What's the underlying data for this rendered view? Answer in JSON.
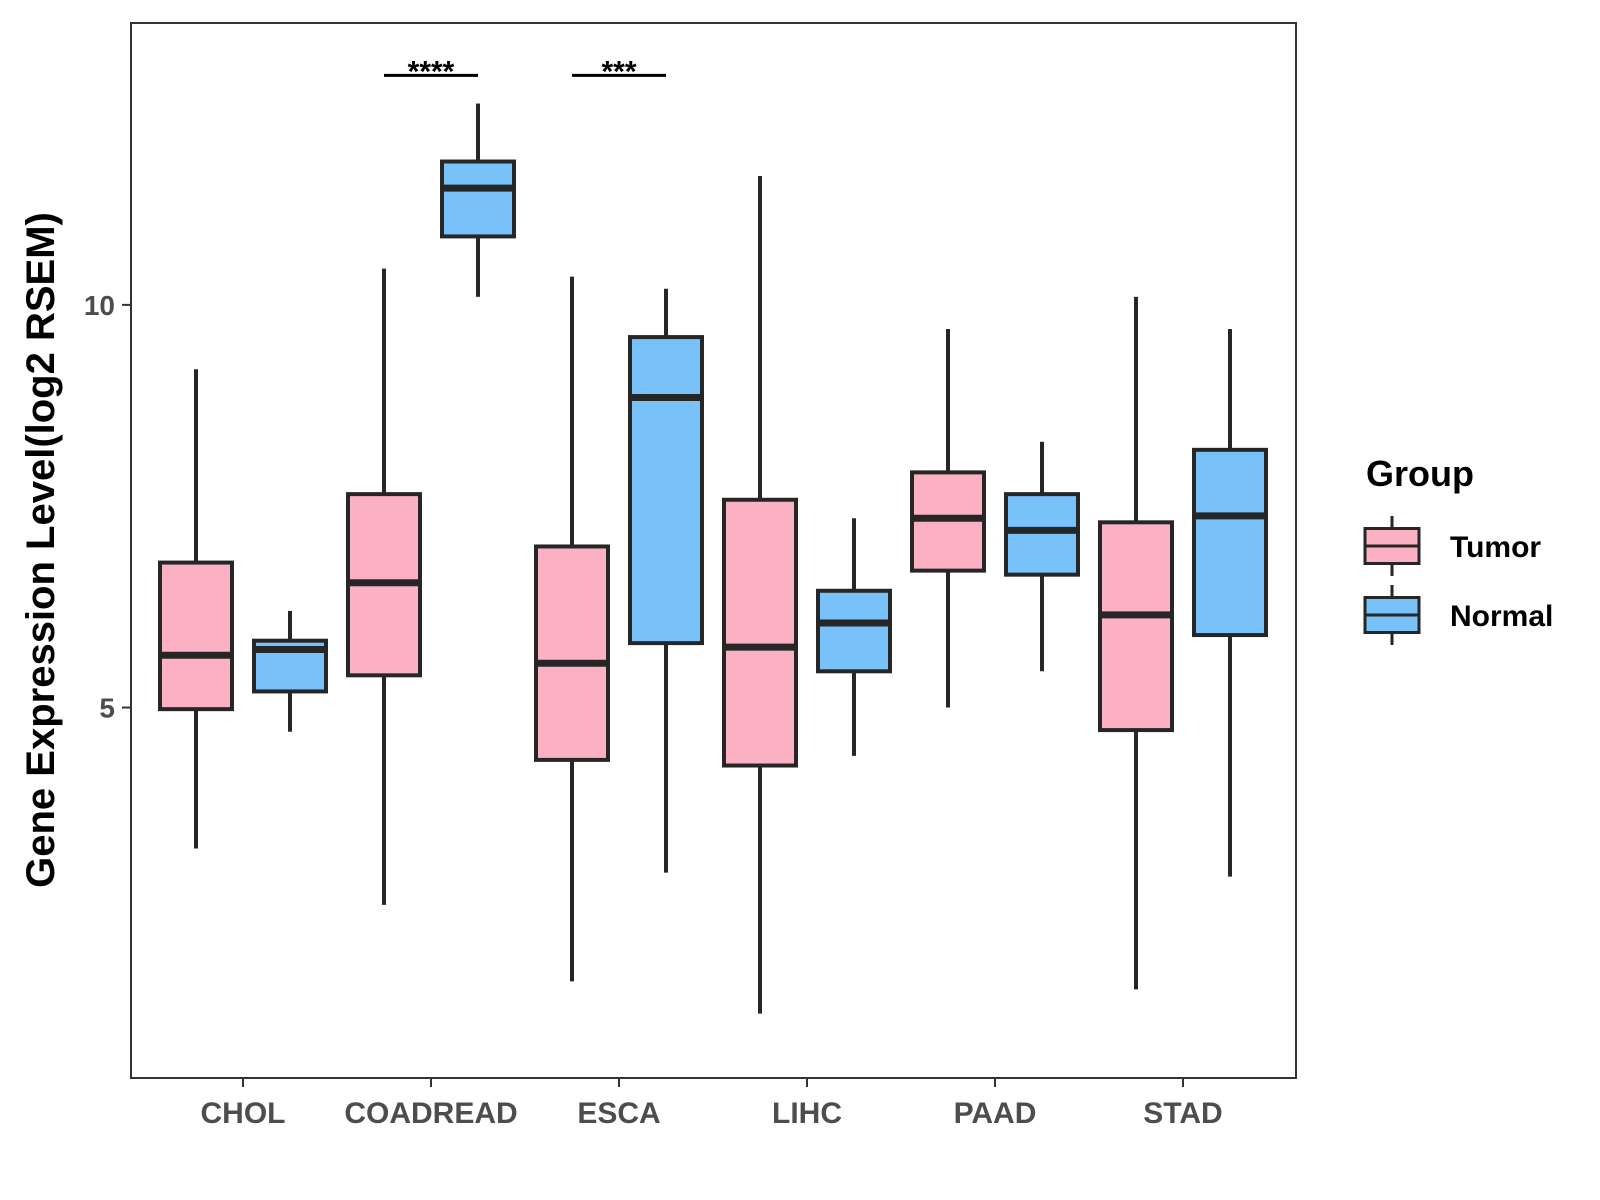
{
  "chart_data": {
    "type": "boxplot",
    "title": "",
    "xlabel": "",
    "ylabel": "Gene Expression Level(log2 RSEM)",
    "ylim": [
      0.4,
      13.5
    ],
    "yticks": [
      5,
      10
    ],
    "yticks_labels": [
      "5",
      "10"
    ],
    "grid": false,
    "legend_position": "right",
    "legend_title": "Group",
    "categories": [
      "CHOL",
      "COADREAD",
      "ESCA",
      "LIHC",
      "PAAD",
      "STAD"
    ],
    "series": [
      {
        "name": "Tumor",
        "color": "#fbb1c3",
        "boxes": [
          {
            "whisker_low": 3.25,
            "q1": 4.98,
            "median": 5.65,
            "q3": 6.8,
            "whisker_high": 9.2
          },
          {
            "whisker_low": 2.55,
            "q1": 5.4,
            "median": 6.55,
            "q3": 7.65,
            "whisker_high": 10.45
          },
          {
            "whisker_low": 1.6,
            "q1": 4.35,
            "median": 5.55,
            "q3": 7.0,
            "whisker_high": 10.35
          },
          {
            "whisker_low": 1.2,
            "q1": 4.28,
            "median": 5.75,
            "q3": 7.58,
            "whisker_high": 11.6
          },
          {
            "whisker_low": 5.0,
            "q1": 6.7,
            "median": 7.35,
            "q3": 7.92,
            "whisker_high": 9.7
          },
          {
            "whisker_low": 1.5,
            "q1": 4.72,
            "median": 6.15,
            "q3": 7.3,
            "whisker_high": 10.1
          }
        ]
      },
      {
        "name": "Normal",
        "color": "#78c1f9",
        "boxes": [
          {
            "whisker_low": 4.7,
            "q1": 5.2,
            "median": 5.72,
            "q3": 5.83,
            "whisker_high": 6.2
          },
          {
            "whisker_low": 10.1,
            "q1": 10.85,
            "median": 11.45,
            "q3": 11.78,
            "whisker_high": 12.5
          },
          {
            "whisker_low": 2.95,
            "q1": 5.8,
            "median": 8.85,
            "q3": 9.6,
            "whisker_high": 10.2
          },
          {
            "whisker_low": 4.4,
            "q1": 5.45,
            "median": 6.05,
            "q3": 6.45,
            "whisker_high": 7.35
          },
          {
            "whisker_low": 5.45,
            "q1": 6.65,
            "median": 7.2,
            "q3": 7.65,
            "whisker_high": 8.3
          },
          {
            "whisker_low": 2.9,
            "q1": 5.9,
            "median": 7.38,
            "q3": 8.2,
            "whisker_high": 9.7
          }
        ]
      }
    ],
    "significance": [
      {
        "category": "COADREAD",
        "label": "****",
        "y": 12.85
      },
      {
        "category": "ESCA",
        "label": "***",
        "y": 12.85
      }
    ]
  }
}
